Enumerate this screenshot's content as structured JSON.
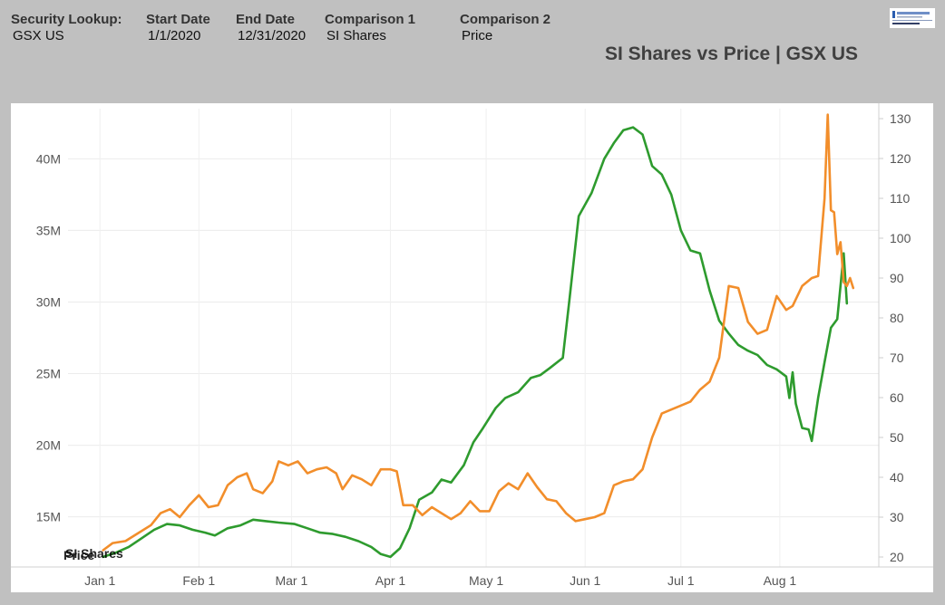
{
  "header": {
    "fields": [
      {
        "label": "Security Lookup:",
        "value": "GSX US"
      },
      {
        "label": "Start Date",
        "value": "1/1/2020"
      },
      {
        "label": "End Date",
        "value": "12/31/2020"
      },
      {
        "label": "Comparison 1",
        "value": "SI Shares"
      },
      {
        "label": "Comparison 2",
        "value": "Price"
      }
    ],
    "chart_title": "SI Shares vs Price | GSX US"
  },
  "chart_data": {
    "type": "line",
    "title": "SI Shares vs Price | GSX US",
    "x_ticks": [
      "Jan 1",
      "Feb 1",
      "Mar 1",
      "Apr 1",
      "May 1",
      "Jun 1",
      "Jul 1",
      "Aug 1"
    ],
    "y_left": {
      "ticks": [
        "15M",
        "20M",
        "25M",
        "30M",
        "35M",
        "40M"
      ],
      "range": [
        11500000,
        43500000
      ]
    },
    "y_right": {
      "ticks": [
        "20",
        "30",
        "40",
        "50",
        "60",
        "70",
        "80",
        "90",
        "100",
        "110",
        "120",
        "130"
      ],
      "range": [
        17.5,
        132.5
      ]
    },
    "inline_labels": [
      "SI Shares",
      "Price"
    ],
    "grid": true,
    "series": [
      {
        "name": "SI Shares",
        "axis": "left",
        "color": "#2e9b2e",
        "points": [
          [
            "2020-01-02",
            12200000
          ],
          [
            "2020-01-06",
            12500000
          ],
          [
            "2020-01-10",
            12900000
          ],
          [
            "2020-01-14",
            13500000
          ],
          [
            "2020-01-18",
            14100000
          ],
          [
            "2020-01-22",
            14500000
          ],
          [
            "2020-01-26",
            14400000
          ],
          [
            "2020-01-30",
            14100000
          ],
          [
            "2020-02-03",
            13900000
          ],
          [
            "2020-02-06",
            13700000
          ],
          [
            "2020-02-10",
            14200000
          ],
          [
            "2020-02-14",
            14400000
          ],
          [
            "2020-02-18",
            14800000
          ],
          [
            "2020-02-22",
            14700000
          ],
          [
            "2020-02-26",
            14600000
          ],
          [
            "2020-03-02",
            14500000
          ],
          [
            "2020-03-06",
            14200000
          ],
          [
            "2020-03-10",
            13900000
          ],
          [
            "2020-03-14",
            13800000
          ],
          [
            "2020-03-18",
            13600000
          ],
          [
            "2020-03-22",
            13300000
          ],
          [
            "2020-03-26",
            12900000
          ],
          [
            "2020-03-29",
            12400000
          ],
          [
            "2020-04-01",
            12200000
          ],
          [
            "2020-04-04",
            12800000
          ],
          [
            "2020-04-07",
            14200000
          ],
          [
            "2020-04-10",
            16200000
          ],
          [
            "2020-04-14",
            16700000
          ],
          [
            "2020-04-17",
            17600000
          ],
          [
            "2020-04-20",
            17400000
          ],
          [
            "2020-04-24",
            18600000
          ],
          [
            "2020-04-27",
            20200000
          ],
          [
            "2020-04-30",
            21200000
          ],
          [
            "2020-05-04",
            22600000
          ],
          [
            "2020-05-07",
            23300000
          ],
          [
            "2020-05-11",
            23700000
          ],
          [
            "2020-05-15",
            24700000
          ],
          [
            "2020-05-18",
            24900000
          ],
          [
            "2020-05-21",
            25400000
          ],
          [
            "2020-05-25",
            26100000
          ],
          [
            "2020-05-27",
            30000000
          ],
          [
            "2020-05-30",
            36000000
          ],
          [
            "2020-06-03",
            37600000
          ],
          [
            "2020-06-07",
            40000000
          ],
          [
            "2020-06-10",
            41100000
          ],
          [
            "2020-06-13",
            42000000
          ],
          [
            "2020-06-16",
            42200000
          ],
          [
            "2020-06-19",
            41700000
          ],
          [
            "2020-06-22",
            39500000
          ],
          [
            "2020-06-25",
            38900000
          ],
          [
            "2020-06-28",
            37500000
          ],
          [
            "2020-07-01",
            35000000
          ],
          [
            "2020-07-04",
            33600000
          ],
          [
            "2020-07-07",
            33400000
          ],
          [
            "2020-07-10",
            30800000
          ],
          [
            "2020-07-13",
            28700000
          ],
          [
            "2020-07-16",
            27800000
          ],
          [
            "2020-07-19",
            27000000
          ],
          [
            "2020-07-22",
            26600000
          ],
          [
            "2020-07-25",
            26300000
          ],
          [
            "2020-07-28",
            25600000
          ],
          [
            "2020-07-31",
            25300000
          ],
          [
            "2020-08-03",
            24800000
          ],
          [
            "2020-08-04",
            23300000
          ],
          [
            "2020-08-05",
            25100000
          ],
          [
            "2020-08-06",
            22900000
          ],
          [
            "2020-08-08",
            21200000
          ],
          [
            "2020-08-10",
            21100000
          ],
          [
            "2020-08-11",
            20300000
          ],
          [
            "2020-08-13",
            23300000
          ],
          [
            "2020-08-15",
            25800000
          ],
          [
            "2020-08-17",
            28200000
          ],
          [
            "2020-08-19",
            28800000
          ],
          [
            "2020-08-21",
            33400000
          ],
          [
            "2020-08-22",
            29900000
          ]
        ]
      },
      {
        "name": "Price",
        "axis": "right",
        "color": "#f28e2b",
        "points": [
          [
            "2020-01-02",
            21.7
          ],
          [
            "2020-01-05",
            23.5
          ],
          [
            "2020-01-09",
            24.0
          ],
          [
            "2020-01-13",
            26.0
          ],
          [
            "2020-01-17",
            28.0
          ],
          [
            "2020-01-20",
            31.0
          ],
          [
            "2020-01-23",
            32.0
          ],
          [
            "2020-01-26",
            30.0
          ],
          [
            "2020-01-29",
            33.0
          ],
          [
            "2020-02-01",
            35.5
          ],
          [
            "2020-02-04",
            32.5
          ],
          [
            "2020-02-07",
            33.0
          ],
          [
            "2020-02-10",
            38.0
          ],
          [
            "2020-02-13",
            40.0
          ],
          [
            "2020-02-16",
            41.0
          ],
          [
            "2020-02-18",
            37.0
          ],
          [
            "2020-02-21",
            36.0
          ],
          [
            "2020-02-24",
            39.0
          ],
          [
            "2020-02-26",
            44.0
          ],
          [
            "2020-02-29",
            43.0
          ],
          [
            "2020-03-03",
            44.0
          ],
          [
            "2020-03-06",
            41.0
          ],
          [
            "2020-03-09",
            42.0
          ],
          [
            "2020-03-12",
            42.5
          ],
          [
            "2020-03-15",
            41.0
          ],
          [
            "2020-03-17",
            37.0
          ],
          [
            "2020-03-20",
            40.5
          ],
          [
            "2020-03-23",
            39.5
          ],
          [
            "2020-03-26",
            38.0
          ],
          [
            "2020-03-29",
            42.0
          ],
          [
            "2020-04-01",
            42.0
          ],
          [
            "2020-04-03",
            41.5
          ],
          [
            "2020-04-05",
            33.0
          ],
          [
            "2020-04-08",
            33.0
          ],
          [
            "2020-04-11",
            30.5
          ],
          [
            "2020-04-14",
            32.5
          ],
          [
            "2020-04-17",
            31.0
          ],
          [
            "2020-04-20",
            29.5
          ],
          [
            "2020-04-23",
            31.0
          ],
          [
            "2020-04-26",
            34.0
          ],
          [
            "2020-04-29",
            31.5
          ],
          [
            "2020-05-02",
            31.5
          ],
          [
            "2020-05-05",
            36.5
          ],
          [
            "2020-05-08",
            38.5
          ],
          [
            "2020-05-11",
            37.0
          ],
          [
            "2020-05-14",
            41.0
          ],
          [
            "2020-05-17",
            37.5
          ],
          [
            "2020-05-20",
            34.5
          ],
          [
            "2020-05-23",
            34.0
          ],
          [
            "2020-05-26",
            31.0
          ],
          [
            "2020-05-29",
            29.0
          ],
          [
            "2020-06-01",
            29.5
          ],
          [
            "2020-06-04",
            30.0
          ],
          [
            "2020-06-07",
            31.0
          ],
          [
            "2020-06-10",
            38.0
          ],
          [
            "2020-06-13",
            39.0
          ],
          [
            "2020-06-16",
            39.5
          ],
          [
            "2020-06-19",
            42.0
          ],
          [
            "2020-06-22",
            50.0
          ],
          [
            "2020-06-25",
            56.0
          ],
          [
            "2020-06-28",
            57.0
          ],
          [
            "2020-07-01",
            58.0
          ],
          [
            "2020-07-04",
            59.0
          ],
          [
            "2020-07-07",
            62.0
          ],
          [
            "2020-07-10",
            64.0
          ],
          [
            "2020-07-13",
            70.0
          ],
          [
            "2020-07-16",
            88.0
          ],
          [
            "2020-07-19",
            87.5
          ],
          [
            "2020-07-22",
            79.0
          ],
          [
            "2020-07-25",
            76.0
          ],
          [
            "2020-07-28",
            77.0
          ],
          [
            "2020-07-31",
            85.5
          ],
          [
            "2020-08-03",
            82.0
          ],
          [
            "2020-08-05",
            83.0
          ],
          [
            "2020-08-08",
            88.0
          ],
          [
            "2020-08-11",
            90.0
          ],
          [
            "2020-08-13",
            90.5
          ],
          [
            "2020-08-15",
            110.0
          ],
          [
            "2020-08-16",
            131.0
          ],
          [
            "2020-08-17",
            107.0
          ],
          [
            "2020-08-18",
            106.5
          ],
          [
            "2020-08-19",
            96.0
          ],
          [
            "2020-08-20",
            99.0
          ],
          [
            "2020-08-21",
            89.0
          ],
          [
            "2020-08-22",
            88.0
          ],
          [
            "2020-08-23",
            90.0
          ],
          [
            "2020-08-24",
            87.5
          ]
        ]
      }
    ]
  }
}
